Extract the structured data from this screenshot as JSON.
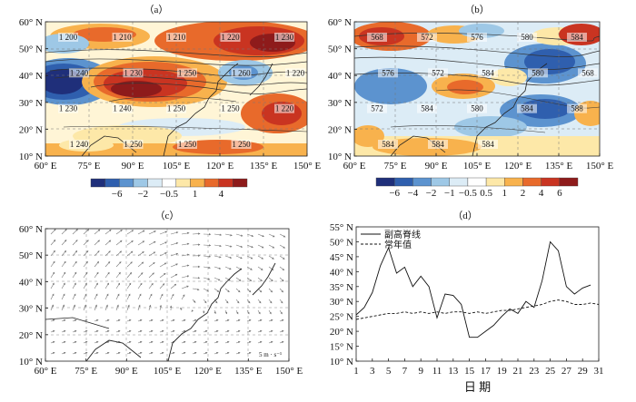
{
  "panels": {
    "a": {
      "label": "（a）"
    },
    "b": {
      "label": "（b）"
    },
    "c": {
      "label": "（c）"
    },
    "d": {
      "label": "（d）"
    }
  },
  "map_axes": {
    "lat_ticks": [
      "60° N",
      "50° N",
      "40° N",
      "30° N",
      "20° N",
      "10° N"
    ],
    "lon_ticks": [
      "60° E",
      "75° E",
      "90° E",
      "105° E",
      "120° E",
      "135° E",
      "150° E"
    ]
  },
  "colorbars": {
    "a": {
      "labels": [
        "−6",
        "−2",
        "−0.5",
        "1",
        "4"
      ],
      "colors": [
        "#1f2f7a",
        "#2f5fae",
        "#5c93cf",
        "#9ec8e6",
        "#dcecf6",
        "#ffffff",
        "#fde8a8",
        "#f8b24d",
        "#e86a2b",
        "#c93421",
        "#8e1b1b"
      ]
    },
    "b": {
      "labels": [
        "−6",
        "−4",
        "−2",
        "−1",
        "−0.5",
        "0.5",
        "1",
        "2",
        "4",
        "6"
      ],
      "colors": [
        "#1f2f7a",
        "#2f5fae",
        "#5c93cf",
        "#9ec8e6",
        "#dcecf6",
        "#ffffff",
        "#fde8a8",
        "#f8b24d",
        "#e86a2b",
        "#c93421",
        "#8e1b1b"
      ]
    }
  },
  "contour_labels": {
    "a": [
      "1 200",
      "1 210",
      "1 210",
      "1 220",
      "1 230",
      "1 240",
      "1 230",
      "1 250",
      "1 260",
      "1 220",
      "1 230",
      "1 240",
      "1 250",
      "1 250",
      "1 220",
      "1 240",
      "1 250",
      "1 250",
      "1 250"
    ],
    "b": [
      "568",
      "572",
      "576",
      "580",
      "584",
      "576",
      "572",
      "584",
      "580",
      "568",
      "572",
      "584",
      "580",
      "584",
      "588",
      "584",
      "584",
      "584"
    ]
  },
  "panel_c": {
    "scale_label": "5 m · s⁻¹"
  },
  "chart_data": {
    "type": "line",
    "x": [
      1,
      2,
      3,
      4,
      5,
      6,
      7,
      8,
      9,
      10,
      11,
      12,
      13,
      14,
      15,
      16,
      17,
      18,
      19,
      20,
      21,
      22,
      23,
      24,
      25,
      26,
      27,
      28,
      29,
      30,
      31
    ],
    "x_ticks": [
      "1",
      "3",
      "5",
      "7",
      "9",
      "11",
      "13",
      "15",
      "17",
      "19",
      "21",
      "23",
      "25",
      "27",
      "29",
      "31"
    ],
    "y_ticks": [
      "55° N",
      "50° N",
      "45° N",
      "40° N",
      "35° N",
      "30° N",
      "25° N",
      "20° N",
      "15° N",
      "10° N"
    ],
    "ylim": [
      10,
      55
    ],
    "xlabel": "日 期",
    "ylabel": "",
    "series": [
      {
        "name": "副高脊线",
        "style": "solid",
        "values": [
          25.5,
          28,
          33,
          42,
          48,
          39.5,
          41.5,
          35,
          38.5,
          35,
          24.5,
          32.5,
          32,
          29,
          18,
          18,
          20,
          22,
          25,
          27.5,
          26,
          30,
          28,
          37,
          50,
          47,
          35,
          32.5,
          34.5,
          35.5,
          null
        ]
      },
      {
        "name": "常年值",
        "style": "dashed",
        "values": [
          24,
          24.5,
          25,
          25.5,
          26,
          26,
          26.5,
          26,
          26.5,
          26,
          26.5,
          26,
          26.5,
          26.5,
          26,
          26.5,
          26,
          26.5,
          27,
          27,
          27.5,
          28,
          28.5,
          29,
          30,
          30.5,
          30,
          29,
          29,
          29.5,
          29
        ]
      }
    ],
    "legend": "top-left"
  }
}
